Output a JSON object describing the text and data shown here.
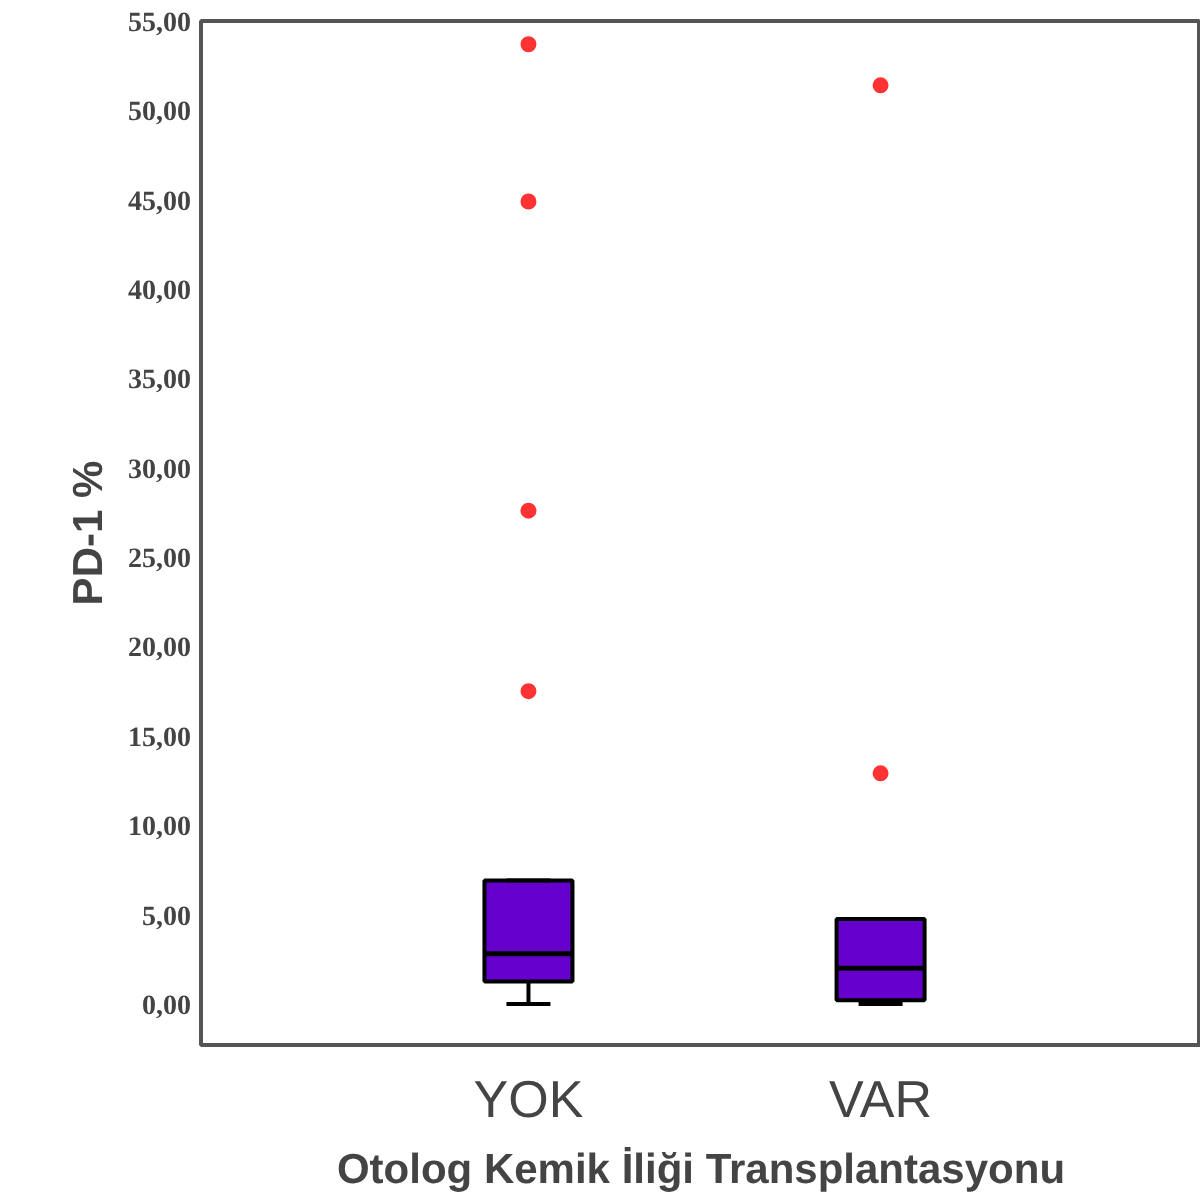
{
  "chart_data": {
    "type": "box",
    "xlabel": "Otolog Kemik İliği Transplantasyonu",
    "ylabel": "PD-1 %",
    "categories": [
      "YOK",
      "VAR"
    ],
    "boxes": [
      {
        "low": 0,
        "q1": 1.25,
        "median": 2.8,
        "q3": 6.9,
        "high": 6.9,
        "outliers": [
          53.7,
          44.9,
          27.6,
          17.5
        ]
      },
      {
        "low": 0,
        "q1": 0.2,
        "median": 2.0,
        "q3": 4.75,
        "high": 4.75,
        "outliers": [
          51.4,
          12.9
        ]
      }
    ],
    "color": "#6600cc",
    "ylim": [
      -2.3,
      55
    ],
    "yticks": [
      {
        "value": 0,
        "label": "0,00"
      },
      {
        "value": 5,
        "label": "5,00"
      },
      {
        "value": 10,
        "label": "10,00"
      },
      {
        "value": 15,
        "label": "15,00"
      },
      {
        "value": 20,
        "label": "20,00"
      },
      {
        "value": 25,
        "label": "25,00"
      },
      {
        "value": 30,
        "label": "30,00"
      },
      {
        "value": 35,
        "label": "35,00"
      },
      {
        "value": 40,
        "label": "40,00"
      },
      {
        "value": 45,
        "label": "45,00"
      },
      {
        "value": 50,
        "label": "50,00"
      },
      {
        "value": 55,
        "label": "55,00"
      }
    ],
    "grid": false
  }
}
